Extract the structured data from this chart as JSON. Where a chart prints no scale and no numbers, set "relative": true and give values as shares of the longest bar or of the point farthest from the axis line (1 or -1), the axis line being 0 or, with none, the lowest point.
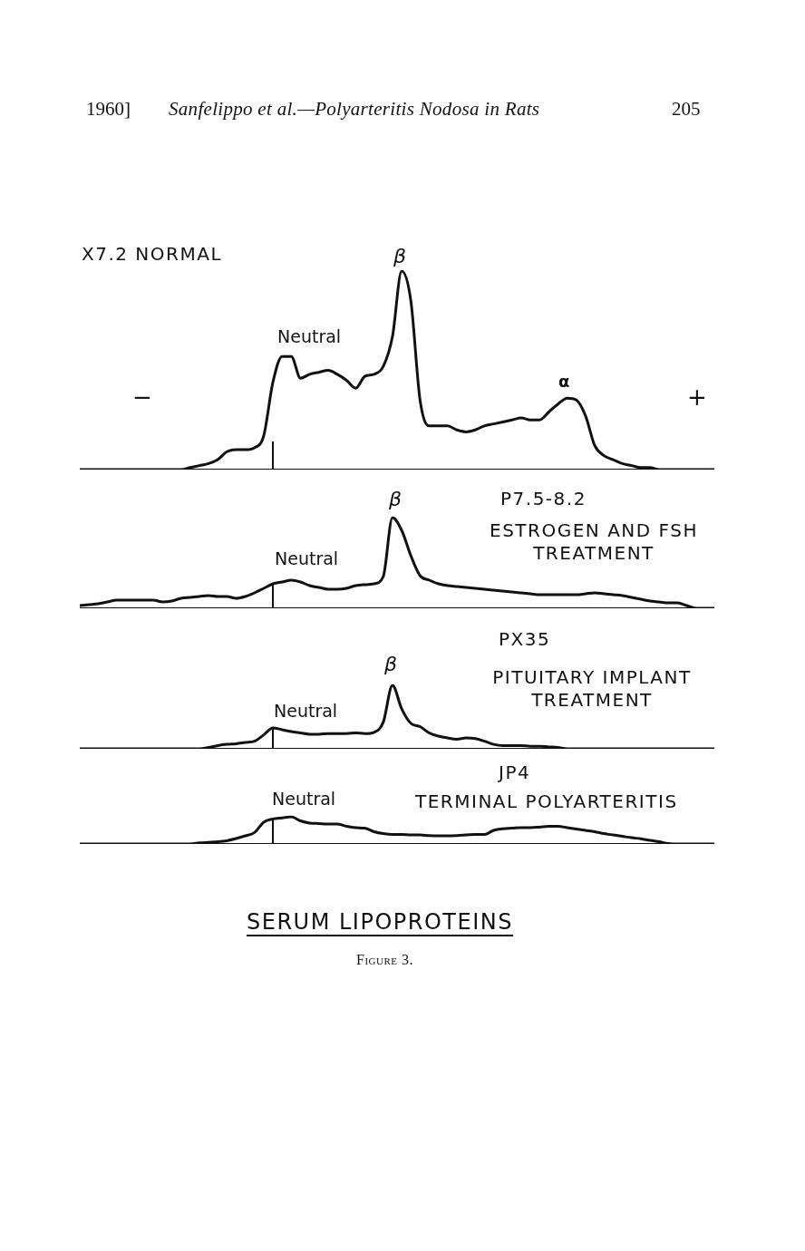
{
  "chart_data": [
    {
      "type": "line",
      "relative": true,
      "title": "X7.2 NORMAL",
      "color": "#111111",
      "legend": false,
      "grid": false,
      "categories": [
        null,
        null,
        null,
        null,
        null,
        null,
        null,
        null,
        null,
        null,
        null,
        null,
        null,
        null,
        null,
        null,
        null,
        null,
        null,
        null,
        null,
        null,
        null,
        null,
        null,
        null,
        null,
        null,
        null,
        null,
        null,
        null,
        null,
        null,
        null,
        null,
        null,
        null,
        null,
        null,
        null,
        null,
        null,
        null,
        null,
        null,
        null,
        null,
        null,
        null,
        null,
        null,
        null,
        null,
        null,
        null,
        null,
        null,
        null,
        null,
        null,
        null,
        null,
        null,
        null,
        null,
        null,
        null,
        null,
        null
      ],
      "values": [
        0,
        0,
        0,
        0,
        0,
        0,
        0,
        0,
        0,
        0,
        0,
        0,
        0.01,
        0.02,
        0.03,
        0.05,
        0.09,
        0.1,
        0.1,
        0.11,
        0.17,
        0.44,
        0.57,
        0.57,
        0.46,
        0.48,
        0.49,
        0.5,
        0.48,
        0.45,
        0.41,
        0.47,
        0.48,
        0.52,
        0.67,
        1,
        0.85,
        0.35,
        0.22,
        0.22,
        0.22,
        0.2,
        0.19,
        0.2,
        0.22,
        0.23,
        0.24,
        0.25,
        0.26,
        0.25,
        0.25,
        0.29,
        0.33,
        0.36,
        0.35,
        0.27,
        0.12,
        0.07,
        0.05,
        0.03,
        0.02,
        0.01,
        0.01,
        0,
        0,
        0,
        0,
        0,
        0,
        0
      ],
      "annotations": [
        "1960]",
        "Sanfelippo et al.—Polyarteritis Nodosa in Rats",
        "205",
        "Neutral",
        "β",
        "α",
        "−",
        "+"
      ]
    },
    {
      "type": "line",
      "relative": true,
      "title": "P7.5-8.2",
      "subtitle": "ESTROGEN AND FSH TREATMENT",
      "color": "#111111",
      "legend": false,
      "grid": false,
      "categories": [
        null,
        null,
        null,
        null,
        null,
        null,
        null,
        null,
        null,
        null,
        null,
        null,
        null,
        null,
        null,
        null,
        null,
        null,
        null,
        null,
        null,
        null,
        null,
        null,
        null,
        null,
        null,
        null,
        null,
        null,
        null,
        null,
        null,
        null,
        null,
        null,
        null,
        null,
        null,
        null,
        null,
        null,
        null,
        null,
        null,
        null,
        null,
        null,
        null,
        null,
        null,
        null,
        null,
        null,
        null,
        null,
        null,
        null,
        null,
        null,
        null,
        null,
        null,
        null,
        null,
        null,
        null,
        null,
        null,
        null
      ],
      "values": [
        0.03,
        0.04,
        0.05,
        0.07,
        0.09,
        0.09,
        0.09,
        0.09,
        0.09,
        0.07,
        0.08,
        0.11,
        0.12,
        0.13,
        0.14,
        0.13,
        0.13,
        0.11,
        0.13,
        0.17,
        0.22,
        0.27,
        0.29,
        0.31,
        0.29,
        0.25,
        0.23,
        0.21,
        0.21,
        0.22,
        0.25,
        0.26,
        0.27,
        0.35,
        1,
        0.86,
        0.58,
        0.36,
        0.31,
        0.27,
        0.25,
        0.24,
        0.23,
        0.22,
        0.21,
        0.2,
        0.19,
        0.18,
        0.17,
        0.16,
        0.15,
        0.15,
        0.15,
        0.15,
        0.15,
        0.16,
        0.17,
        0.16,
        0.15,
        0.14,
        0.12,
        0.1,
        0.08,
        0.07,
        0.06,
        0.06,
        0.03,
        0,
        0,
        0
      ],
      "annotations": [
        "Neutral",
        "β"
      ]
    },
    {
      "type": "line",
      "relative": true,
      "title": "PX35",
      "subtitle": "PITUITARY IMPLANT TREATMENT",
      "color": "#111111",
      "legend": false,
      "grid": false,
      "categories": [
        null,
        null,
        null,
        null,
        null,
        null,
        null,
        null,
        null,
        null,
        null,
        null,
        null,
        null,
        null,
        null,
        null,
        null,
        null,
        null,
        null,
        null,
        null,
        null,
        null,
        null,
        null,
        null,
        null,
        null,
        null,
        null,
        null,
        null,
        null,
        null,
        null,
        null,
        null,
        null,
        null,
        null,
        null,
        null,
        null,
        null,
        null,
        null,
        null,
        null,
        null,
        null,
        null,
        null,
        null,
        null,
        null,
        null,
        null,
        null,
        null,
        null,
        null,
        null,
        null,
        null,
        null,
        null,
        null,
        null
      ],
      "values": [
        0,
        0,
        0,
        0,
        0,
        0,
        0,
        0,
        0,
        0,
        0,
        0,
        0,
        0,
        0.02,
        0.05,
        0.07,
        0.08,
        0.1,
        0.12,
        0.22,
        0.33,
        0.3,
        0.27,
        0.25,
        0.23,
        0.23,
        0.24,
        0.24,
        0.24,
        0.25,
        0.24,
        0.26,
        0.42,
        1,
        0.63,
        0.4,
        0.35,
        0.25,
        0.2,
        0.17,
        0.15,
        0.17,
        0.16,
        0.12,
        0.07,
        0.05,
        0.05,
        0.05,
        0.04,
        0.04,
        0.03,
        0.02,
        0,
        0,
        0,
        0,
        0,
        0,
        0,
        0,
        0,
        0,
        0,
        0,
        0,
        0,
        0,
        0,
        0
      ],
      "annotations": [
        "Neutral",
        "β"
      ]
    },
    {
      "type": "line",
      "relative": true,
      "title": "JP4",
      "subtitle": "TERMINAL POLYARTERITIS",
      "color": "#111111",
      "legend": false,
      "grid": false,
      "categories": [
        null,
        null,
        null,
        null,
        null,
        null,
        null,
        null,
        null,
        null,
        null,
        null,
        null,
        null,
        null,
        null,
        null,
        null,
        null,
        null,
        null,
        null,
        null,
        null,
        null,
        null,
        null,
        null,
        null,
        null,
        null,
        null,
        null,
        null,
        null,
        null,
        null,
        null,
        null,
        null,
        null,
        null,
        null,
        null,
        null,
        null,
        null,
        null,
        null,
        null,
        null,
        null,
        null,
        null,
        null,
        null,
        null,
        null,
        null,
        null,
        null,
        null,
        null,
        null,
        null,
        null,
        null,
        null,
        null,
        null
      ],
      "values": [
        0,
        0,
        0,
        0,
        0,
        0,
        0,
        0,
        0,
        0,
        0,
        0,
        0,
        0.04,
        0.06,
        0.08,
        0.12,
        0.2,
        0.3,
        0.42,
        0.8,
        0.92,
        0.96,
        1,
        0.85,
        0.77,
        0.75,
        0.73,
        0.73,
        0.65,
        0.6,
        0.58,
        0.45,
        0.38,
        0.35,
        0.35,
        0.33,
        0.33,
        0.31,
        0.3,
        0.3,
        0.31,
        0.33,
        0.35,
        0.35,
        0.5,
        0.56,
        0.58,
        0.6,
        0.6,
        0.62,
        0.65,
        0.65,
        0.6,
        0.55,
        0.5,
        0.45,
        0.38,
        0.33,
        0.28,
        0.23,
        0.19,
        0.13,
        0.08,
        0.02,
        0,
        0,
        0,
        0,
        0
      ],
      "annotations": [
        "Neutral",
        "SERUM LIPOPROTEINS",
        "Figure 3."
      ]
    }
  ]
}
